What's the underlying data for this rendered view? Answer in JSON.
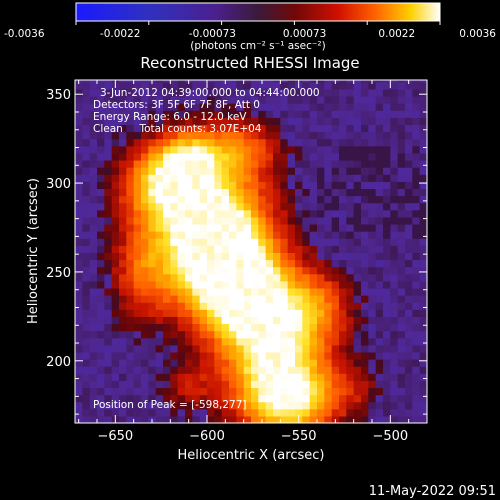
{
  "colorbar": {
    "ticks": [
      "-0.0036",
      "-0.0022",
      "-0.00073",
      "0.00073",
      "0.0022",
      "0.0036"
    ],
    "unit_label": "(photons cm⁻² s⁻¹ asec⁻²)",
    "colors": [
      "#1a1aff",
      "#2a2acc",
      "#4b1f8f",
      "#3a1a4a",
      "#5a0a0a",
      "#b00000",
      "#ff3000",
      "#ff9a00",
      "#ffe000",
      "#ffffff"
    ]
  },
  "chart_data": {
    "type": "heatmap",
    "title": "Reconstructed RHESSI Image",
    "xlabel": "Heliocentric X (arcsec)",
    "ylabel": "Heliocentric Y (arcsec)",
    "xlim": [
      -672,
      -480
    ],
    "ylim": [
      165,
      358
    ],
    "xticks": [
      -650,
      -600,
      -550,
      -500
    ],
    "yticks": [
      200,
      250,
      300,
      350
    ],
    "annotations": {
      "time_range": "3-Jun-2012 04:39:00.000 to 04:44:00.000",
      "detectors": "Detectors: 3F 5F 6F 7F 8F, Att 0",
      "energy_range": "Energy Range: 6.0 - 12.0 keV",
      "clean_line": "Clean     Total counts: 3.07E+04",
      "peak_position": "Position of Peak = [-598,277]"
    },
    "peak": [
      -598,
      277
    ]
  },
  "footer": {
    "timestamp": "11-May-2022 09:51"
  }
}
